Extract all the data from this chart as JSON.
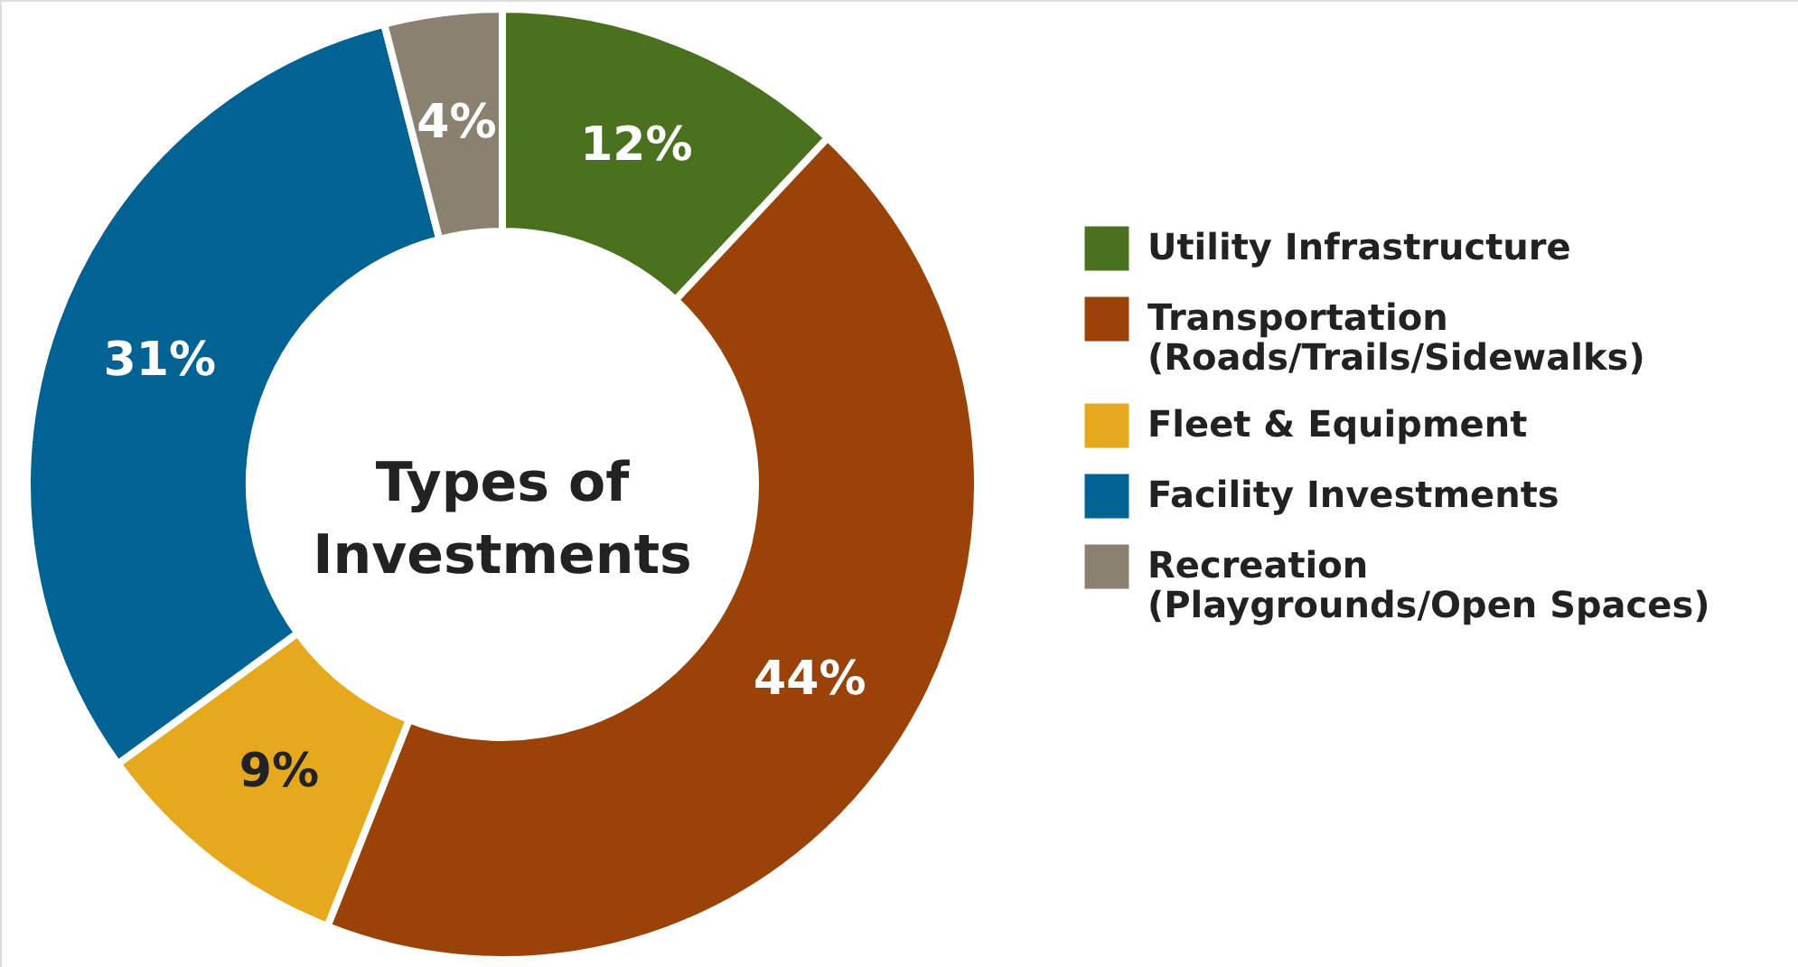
{
  "chart_data": {
    "type": "donut",
    "title": "Types of\nInvestments",
    "categories": [
      "Utility Infrastructure",
      "Transportation (Roads/Trails/Sidewalks)",
      "Fleet & Equipment",
      "Facility Investments",
      "Recreation (Playgrounds/Open Spaces)"
    ],
    "values": [
      12,
      44,
      9,
      31,
      4
    ],
    "value_labels": [
      "12%",
      "44%",
      "9%",
      "31%",
      "4%"
    ],
    "colors": [
      "#4a721e",
      "#9a4207",
      "#e6a81c",
      "#006393",
      "#8b8170"
    ],
    "legend": "right"
  }
}
